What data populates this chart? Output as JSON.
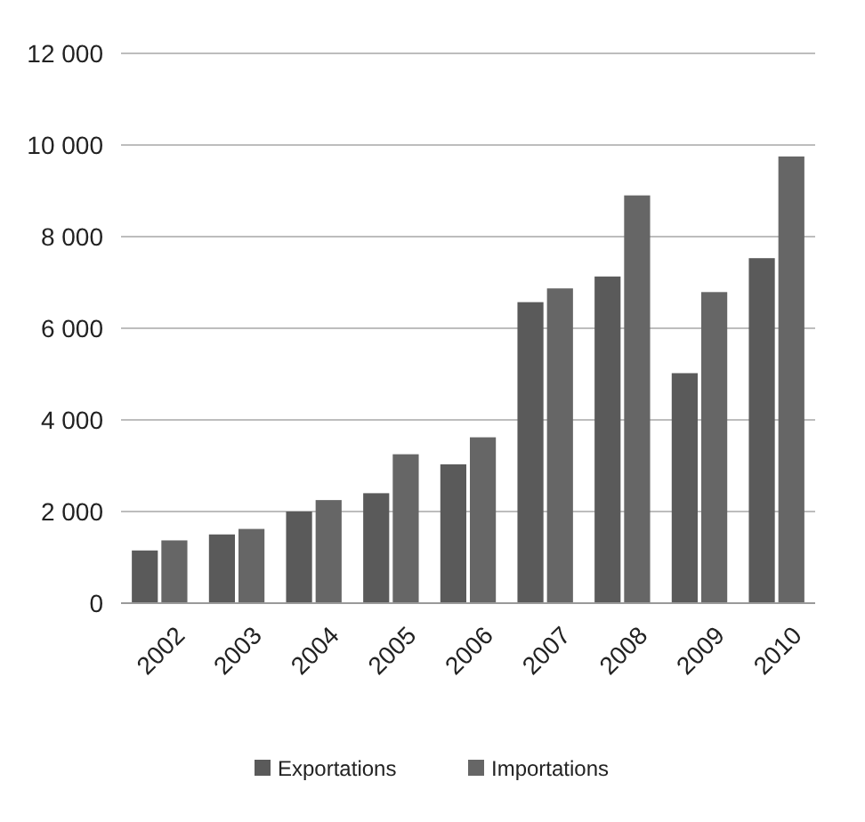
{
  "chart_data": {
    "type": "bar",
    "categories": [
      "2002",
      "2003",
      "2004",
      "2005",
      "2006",
      "2007",
      "2008",
      "2009",
      "2010"
    ],
    "series": [
      {
        "name": "Exportations",
        "color": "#5a5a5a",
        "values": [
          1150,
          1500,
          2000,
          2400,
          3030,
          6570,
          7130,
          5020,
          7530
        ]
      },
      {
        "name": "Importations",
        "color": "#666666",
        "values": [
          1370,
          1620,
          2250,
          3250,
          3620,
          6870,
          8900,
          6790,
          9750
        ]
      }
    ],
    "ylim": [
      0,
      12000
    ],
    "yticks": [
      0,
      {
        "value": 2000,
        "label": "2 000"
      },
      {
        "value": 4000,
        "label": "4 000"
      },
      {
        "value": 6000,
        "label": "6 000"
      },
      {
        "value": 8000,
        "label": "8 000"
      },
      {
        "value": 10000,
        "label": "10 000"
      },
      {
        "value": 12000,
        "label": "12 000"
      }
    ],
    "grid": "y",
    "legend": "bottom"
  }
}
